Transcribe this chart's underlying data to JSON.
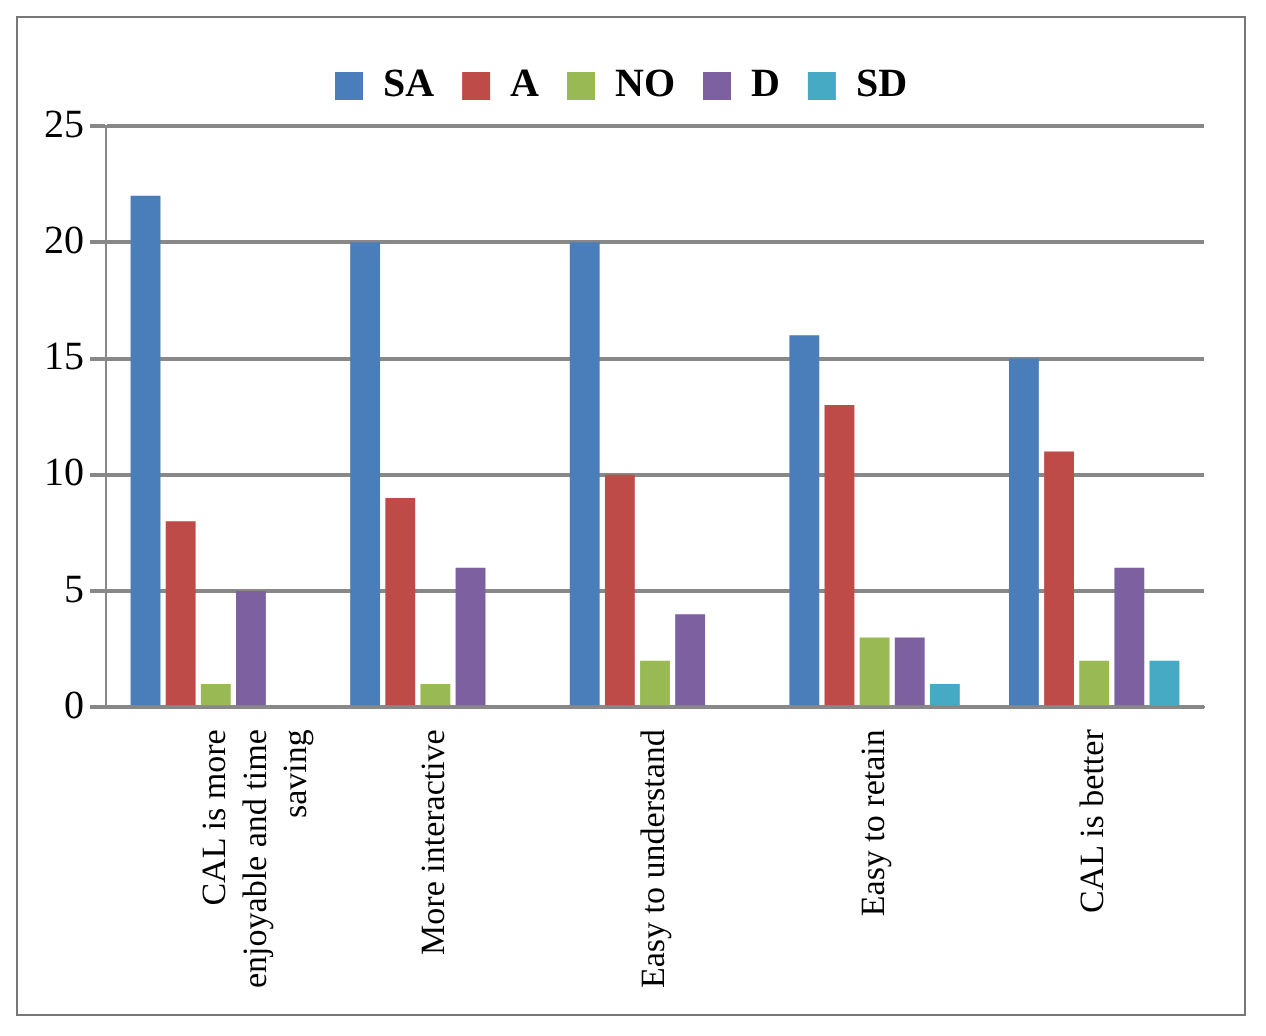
{
  "chart_data": {
    "type": "bar",
    "categories": [
      "CAL is more enjoyable and time saving",
      "More interactive",
      "Easy to understand",
      "Easy to retain",
      "CAL is better"
    ],
    "series": [
      {
        "name": "SA",
        "color": "#4a7ebb",
        "values": [
          22,
          20,
          20,
          16,
          15
        ]
      },
      {
        "name": "A",
        "color": "#be4b48",
        "values": [
          8,
          9,
          10,
          13,
          11
        ]
      },
      {
        "name": "NO",
        "color": "#98b954",
        "values": [
          1,
          1,
          2,
          3,
          2
        ]
      },
      {
        "name": "D",
        "color": "#7d60a0",
        "values": [
          5,
          6,
          4,
          3,
          6
        ]
      },
      {
        "name": "SD",
        "color": "#46aac5",
        "values": [
          0,
          0,
          0,
          1,
          2
        ]
      }
    ],
    "ylim": [
      0,
      25
    ],
    "yticks": [
      0,
      5,
      10,
      15,
      20,
      25
    ],
    "grid": "y",
    "legend": "top"
  }
}
